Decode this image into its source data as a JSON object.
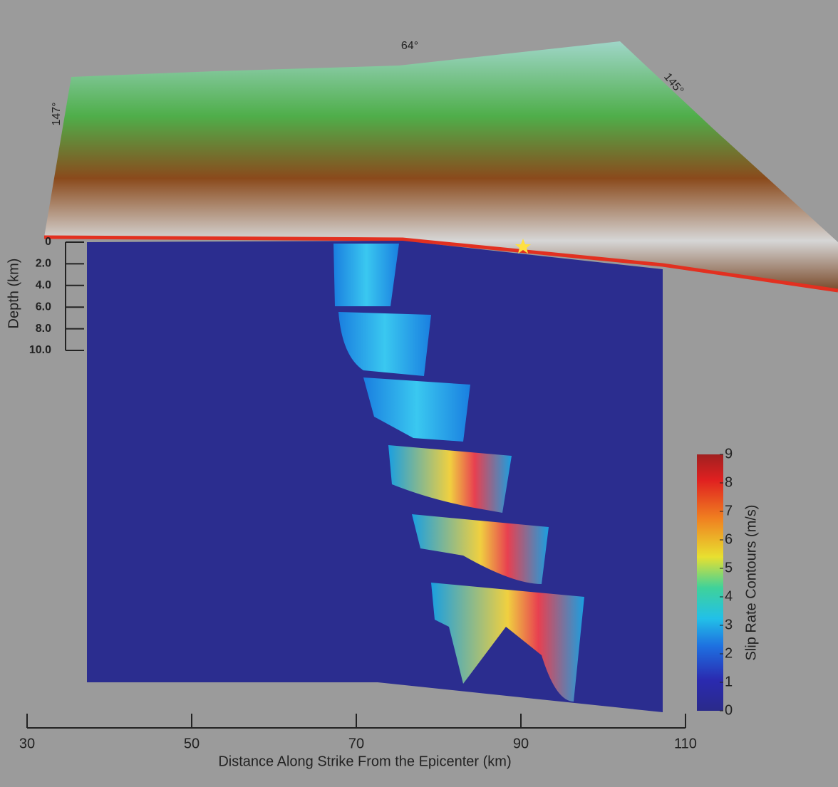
{
  "map": {
    "labels": [
      "64°",
      "145°",
      "147°"
    ]
  },
  "depth_axis": {
    "label": "Depth (km)",
    "lim": [
      0,
      10
    ],
    "ticks": [
      0,
      {
        "value": 2,
        "label": "2.0"
      },
      {
        "value": 4,
        "label": "4.0"
      },
      {
        "value": 6,
        "label": "6.0"
      },
      {
        "value": 8,
        "label": "8.0"
      },
      {
        "value": 10,
        "label": "10.0"
      }
    ]
  },
  "distance_axis": {
    "label": "Distance Along Strike From the Epicenter (km)",
    "lim": [
      30,
      110
    ],
    "ticks": [
      30,
      50,
      70,
      90,
      110
    ]
  },
  "colorbar": {
    "label": "Slip Rate Contours (m/s)",
    "lim": [
      0,
      9
    ],
    "ticks": [
      0,
      1,
      2,
      3,
      4,
      5,
      6,
      7,
      8,
      9
    ]
  }
}
